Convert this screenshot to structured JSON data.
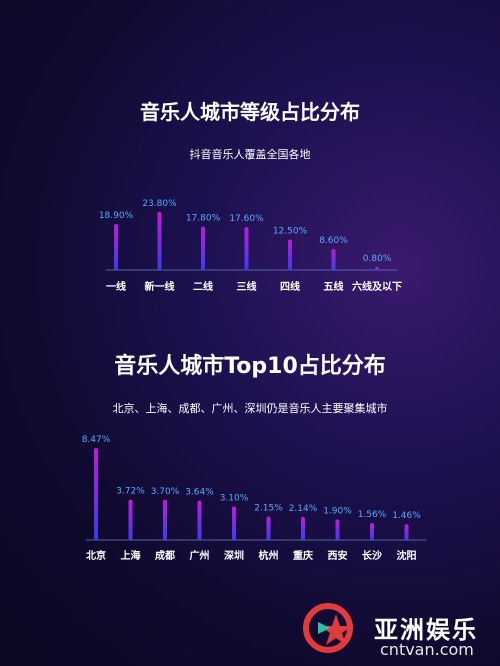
{
  "charts": [
    {
      "title": "音乐人城市等级占比分布",
      "subtitle": "抖音音乐人覆盖全国各地",
      "type": "bar",
      "categories": [
        "一线",
        "新一线",
        "二线",
        "三线",
        "四线",
        "五线",
        "六线及以下"
      ],
      "values": [
        18.9,
        23.8,
        17.8,
        17.6,
        12.5,
        8.6,
        0.8
      ],
      "value_labels": [
        "18.90%",
        "23.80%",
        "17.80%",
        "17.60%",
        "12.50%",
        "8.60%",
        "0.80%"
      ]
    },
    {
      "title": "音乐人城市Top10占比分布",
      "subtitle": "北京、上海、成都、广州、深圳仍是音乐人主要聚集城市",
      "type": "bar",
      "categories": [
        "北京",
        "上海",
        "成都",
        "广州",
        "深圳",
        "杭州",
        "重庆",
        "西安",
        "长沙",
        "沈阳"
      ],
      "values": [
        8.47,
        3.72,
        3.7,
        3.64,
        3.1,
        2.15,
        2.14,
        1.9,
        1.56,
        1.46
      ],
      "value_labels": [
        "8.47%",
        "3.72%",
        "3.70%",
        "3.64%",
        "3.10%",
        "2.15%",
        "2.14%",
        "1.90%",
        "1.56%",
        "1.46%"
      ]
    }
  ],
  "chart_data": [
    {
      "type": "bar",
      "title": "音乐人城市等级占比分布",
      "categories": [
        "一线",
        "新一线",
        "二线",
        "三线",
        "四线",
        "五线",
        "六线及以下"
      ],
      "values": [
        18.9,
        23.8,
        17.8,
        17.6,
        12.5,
        8.6,
        0.8
      ],
      "unit": "%"
    },
    {
      "type": "bar",
      "title": "音乐人城市Top10占比分布",
      "categories": [
        "北京",
        "上海",
        "成都",
        "广州",
        "深圳",
        "杭州",
        "重庆",
        "西安",
        "长沙",
        "沈阳"
      ],
      "values": [
        8.47,
        3.72,
        3.7,
        3.64,
        3.1,
        2.15,
        2.14,
        1.9,
        1.56,
        1.46
      ],
      "unit": "%"
    }
  ],
  "colors": {
    "bar_top": "#c21ad8",
    "bar_bottom": "#3a3cf0",
    "value_label": "#5aa8ff",
    "axis": "#5b5fb0"
  },
  "watermark": {
    "brand": "亚洲娱乐",
    "url": "cntvan.com"
  }
}
